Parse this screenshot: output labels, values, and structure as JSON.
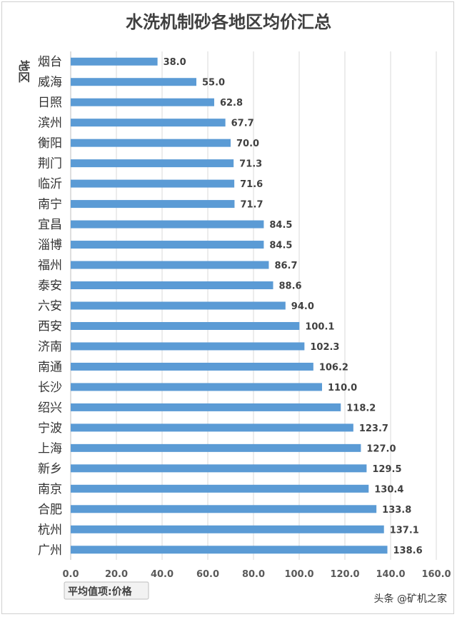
{
  "chart_data": {
    "type": "bar",
    "orientation": "horizontal",
    "title": "水洗机制砂各地区均价汇总",
    "ylabel": "地区",
    "field_button": "平均值项:价格",
    "categories": [
      "烟台",
      "威海",
      "日照",
      "滨州",
      "衡阳",
      "荆门",
      "临沂",
      "南宁",
      "宜昌",
      "淄博",
      "福州",
      "泰安",
      "六安",
      "西安",
      "济南",
      "南通",
      "长沙",
      "绍兴",
      "宁波",
      "上海",
      "新乡",
      "南京",
      "合肥",
      "杭州",
      "广州"
    ],
    "values": [
      38.0,
      55.0,
      62.8,
      67.7,
      70.0,
      71.3,
      71.6,
      71.7,
      84.5,
      84.5,
      86.7,
      88.6,
      94.0,
      100.1,
      102.3,
      106.2,
      110.0,
      118.2,
      123.7,
      127.0,
      129.5,
      130.4,
      133.8,
      137.1,
      138.6
    ],
    "data_labels": [
      "38.0",
      "55.0",
      "62.8",
      "67.7",
      "70.0",
      "71.3",
      "71.6",
      "71.7",
      "84.5",
      "84.5",
      "86.7",
      "88.6",
      "94.0",
      "100.1",
      "102.3",
      "106.2",
      "110.0",
      "118.2",
      "123.7",
      "127.0",
      "129.5",
      "130.4",
      "133.8",
      "137.1",
      "138.6"
    ],
    "xlim": [
      0,
      160
    ],
    "xticks": [
      "0.0",
      "20.0",
      "40.0",
      "60.0",
      "80.0",
      "100.0",
      "120.0",
      "140.0",
      "160.0"
    ],
    "grid": true,
    "bar_color": "#5b9bd5",
    "grid_color": "#d9d9d9"
  },
  "watermark": "头条 @矿机之家"
}
